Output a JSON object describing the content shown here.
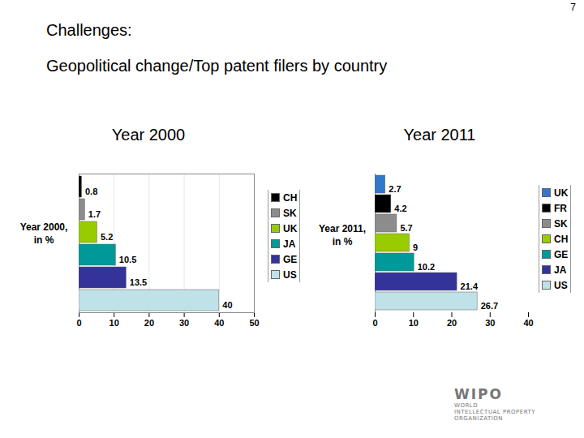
{
  "page": {
    "number": 7,
    "heading": "Challenges:",
    "subheading": "Geopolitical change/Top patent filers by country",
    "logo": {
      "name": "WIPO",
      "lines": [
        "WORLD",
        "INTELLECTUAL PROPERTY",
        "ORGANIZATION"
      ]
    }
  },
  "chart_data": [
    {
      "type": "bar",
      "title": "Year 2000",
      "orientation": "horizontal",
      "y_label": "Year 2000, in %",
      "categories": [
        "CH",
        "SK",
        "UK",
        "JA",
        "GE",
        "US"
      ],
      "values": [
        0.8,
        1.7,
        5.2,
        10.5,
        13.5,
        40
      ],
      "colors": [
        "#000000",
        "#8c8c8c",
        "#99cc00",
        "#009999",
        "#333399",
        "#bfe1e8"
      ],
      "xlim": [
        0,
        50
      ],
      "xticks": [
        0,
        10,
        20,
        30,
        40,
        50
      ],
      "grid": true,
      "data_labels": true,
      "legend": "right",
      "tick_labels": "x"
    },
    {
      "type": "bar",
      "title": "Year 2011",
      "orientation": "horizontal",
      "y_label": "Year 2011, in %",
      "categories": [
        "UK",
        "FR",
        "SK",
        "CH",
        "GE",
        "JA",
        "US"
      ],
      "values": [
        2.7,
        4.2,
        5.7,
        9,
        10.2,
        21.4,
        26.7
      ],
      "colors": [
        "#3377cc",
        "#000000",
        "#8c8c8c",
        "#99cc00",
        "#009999",
        "#333399",
        "#bfe1e8"
      ],
      "xlim": [
        0,
        40
      ],
      "xticks": [
        0,
        10,
        20,
        30,
        40
      ],
      "grid": false,
      "data_labels": true,
      "legend": "right",
      "tick_labels": "x"
    }
  ]
}
